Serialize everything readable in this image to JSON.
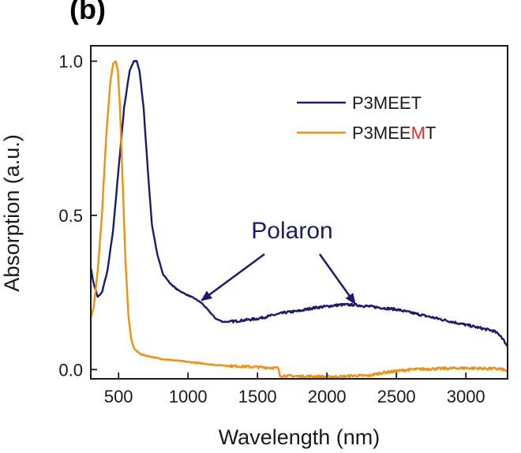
{
  "panel_label": "(b)",
  "chart_data": {
    "type": "line",
    "title": "",
    "xlabel": "Wavelength (nm)",
    "ylabel": "Absorption (a.u.)",
    "xlim": [
      300,
      3300
    ],
    "ylim": [
      -0.03,
      1.05
    ],
    "xticks": [
      500,
      1000,
      1500,
      2000,
      2500,
      3000
    ],
    "xtick_labels": [
      "500",
      "1000",
      "1500",
      "2000",
      "2500",
      "3000"
    ],
    "yticks": [
      0.0,
      0.5,
      1.0
    ],
    "ytick_labels": [
      "0.0",
      "0.5",
      "1.0"
    ],
    "legend": {
      "location": "top-right",
      "entries": [
        {
          "parts": [
            {
              "text": "P3MEET",
              "color": "#1b1b6e"
            }
          ]
        },
        {
          "parts": [
            {
              "text": "P3MEE",
              "color": "#1a1a1a"
            },
            {
              "text": "M",
              "color": "#e0302b"
            },
            {
              "text": "T",
              "color": "#1a1a1a"
            }
          ]
        }
      ]
    },
    "series": [
      {
        "name": "P3MEET",
        "color": "#1b1b6e",
        "x": [
          300,
          320,
          350,
          380,
          420,
          460,
          500,
          540,
          580,
          610,
          630,
          650,
          680,
          710,
          740,
          780,
          820,
          870,
          920,
          980,
          1050,
          1100,
          1150,
          1200,
          1250,
          1300,
          1400,
          1500,
          1600,
          1650,
          1700,
          1800,
          1900,
          2000,
          2100,
          2200,
          2300,
          2400,
          2500,
          2600,
          2700,
          2800,
          2900,
          3000,
          3100,
          3200,
          3250,
          3300
        ],
        "y": [
          0.33,
          0.28,
          0.235,
          0.25,
          0.32,
          0.45,
          0.65,
          0.85,
          0.97,
          1.0,
          1.0,
          0.97,
          0.85,
          0.65,
          0.47,
          0.37,
          0.31,
          0.28,
          0.26,
          0.245,
          0.23,
          0.215,
          0.19,
          0.165,
          0.155,
          0.155,
          0.16,
          0.165,
          0.175,
          0.18,
          0.185,
          0.19,
          0.2,
          0.205,
          0.21,
          0.21,
          0.205,
          0.2,
          0.195,
          0.185,
          0.175,
          0.165,
          0.155,
          0.145,
          0.135,
          0.125,
          0.11,
          0.075
        ]
      },
      {
        "name": "P3MEEMT",
        "color": "#f0900f",
        "x": [
          300,
          320,
          350,
          380,
          410,
          440,
          460,
          480,
          495,
          510,
          530,
          550,
          570,
          590,
          610,
          630,
          660,
          700,
          750,
          800,
          900,
          1000,
          1100,
          1200,
          1300,
          1400,
          1500,
          1600,
          1650,
          1660,
          1700,
          1800,
          1900,
          2000,
          2100,
          2200,
          2300,
          2400,
          2500,
          2600,
          2700,
          2800,
          2900,
          3000,
          3100,
          3200,
          3250,
          3300
        ],
        "y": [
          0.17,
          0.2,
          0.32,
          0.5,
          0.75,
          0.93,
          0.99,
          1.0,
          0.97,
          0.85,
          0.6,
          0.35,
          0.18,
          0.1,
          0.07,
          0.06,
          0.05,
          0.045,
          0.04,
          0.035,
          0.03,
          0.025,
          0.02,
          0.015,
          0.012,
          0.01,
          0.008,
          0.006,
          0.005,
          -0.02,
          -0.02,
          -0.022,
          -0.022,
          -0.023,
          -0.023,
          -0.02,
          -0.02,
          -0.01,
          -0.005,
          0.0,
          0.002,
          0.003,
          0.004,
          0.005,
          0.004,
          0.003,
          0.002,
          -0.005
        ]
      }
    ],
    "annotations": [
      {
        "text": "Polaron",
        "color": "#1b1b6e",
        "arrows_to": [
          [
            1100,
            0.225
          ],
          [
            2200,
            0.215
          ]
        ]
      }
    ]
  }
}
